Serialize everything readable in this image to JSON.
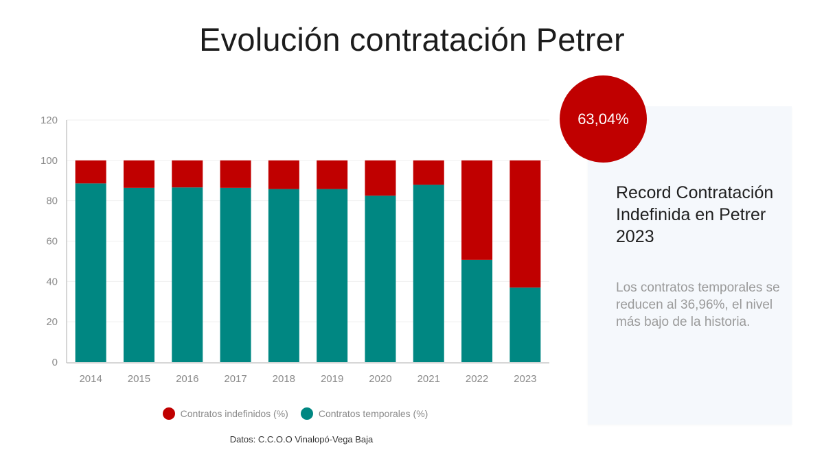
{
  "title": "Evolución contratación Petrer",
  "badge": {
    "value": "63,04%",
    "color": "#c00000"
  },
  "panel": {
    "heading": "Record Contratación Indefinida en Petrer 2023",
    "body": "Los contratos temporales se reducen al 36,96%, el nivel más bajo de la historia."
  },
  "source": "Datos: C.C.O.O Vinalopó-Vega Baja",
  "chart_data": {
    "type": "bar",
    "stacked": true,
    "title": "Evolución contratación Petrer",
    "xlabel": "",
    "ylabel": "",
    "ylim": [
      0,
      120
    ],
    "yticks": [
      0,
      20,
      40,
      60,
      80,
      100,
      120
    ],
    "grid": true,
    "legend_position": "bottom",
    "categories": [
      "2014",
      "2015",
      "2016",
      "2017",
      "2018",
      "2019",
      "2020",
      "2021",
      "2022",
      "2023"
    ],
    "series": [
      {
        "name": "Contratos temporales (%)",
        "color": "#008782",
        "values": [
          88.6,
          86.4,
          86.6,
          86.4,
          85.8,
          85.8,
          82.5,
          87.9,
          50.7,
          36.96
        ]
      },
      {
        "name": "Contratos indefinidos (%)",
        "color": "#c00000",
        "values": [
          11.4,
          13.6,
          13.4,
          13.6,
          14.2,
          14.2,
          17.5,
          12.1,
          49.3,
          63.04
        ]
      }
    ],
    "legend": [
      "Contratos indefinidos (%)",
      "Contratos temporales (%)"
    ]
  }
}
